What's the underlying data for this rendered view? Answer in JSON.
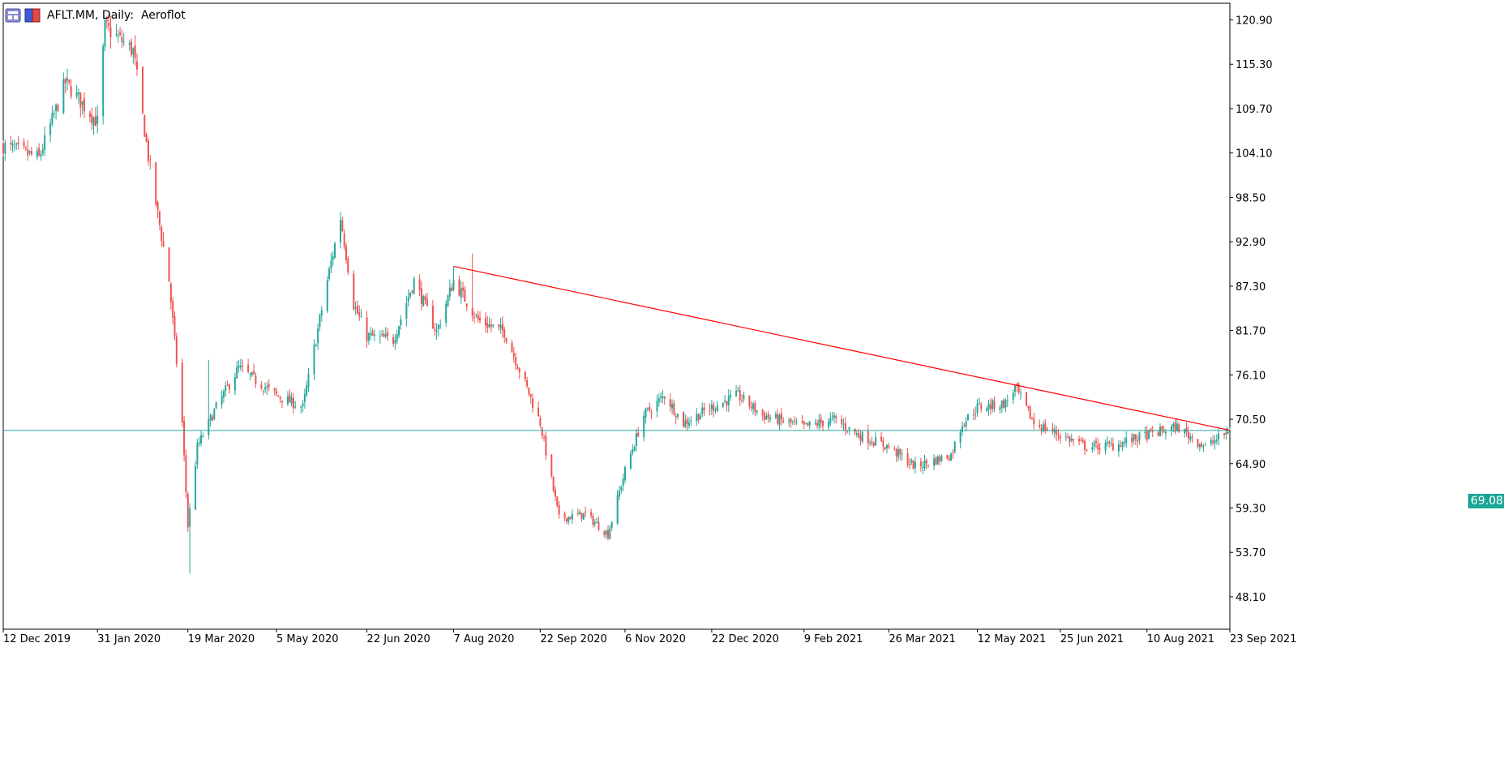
{
  "header": {
    "symbol": "AFLT.MM",
    "timeframe": "Daily",
    "description": "Aeroflot",
    "icons": [
      "chart-properties-icon",
      "trade-icon"
    ]
  },
  "current_price_label": "69.08",
  "colors": {
    "bull": "#26a69a",
    "bear": "#ef5350",
    "trendline": "#ff0000",
    "price_line": "#26a69a",
    "axis": "#000000",
    "background": "#ffffff"
  },
  "chart_data": {
    "type": "candlestick",
    "title": "AFLT.MM, Daily:  Aeroflot",
    "ylim": [
      44.0,
      123.0
    ],
    "y_ticks": [
      "120.90",
      "115.30",
      "109.70",
      "104.10",
      "98.50",
      "92.90",
      "87.30",
      "81.70",
      "76.10",
      "70.50",
      "64.90",
      "59.30",
      "53.70",
      "48.10"
    ],
    "x_ticks": [
      "12 Dec 2019",
      "31 Jan 2020",
      "19 Mar 2020",
      "5 May 2020",
      "22 Jun 2020",
      "7 Aug 2020",
      "22 Sep 2020",
      "6 Nov 2020",
      "22 Dec 2020",
      "9 Feb 2021",
      "26 Mar 2021",
      "12 May 2021",
      "25 Jun 2021",
      "10 Aug 2021",
      "23 Sep 2021"
    ],
    "trendline": {
      "from": {
        "date": "7 Aug 2020",
        "price": 89.8
      },
      "to": {
        "date": "23 Sep 2021",
        "price": 69.1
      }
    },
    "current_price_line": 69.08,
    "close_path": [
      {
        "date": "12 Dec 2019",
        "close": 105.0
      },
      {
        "date": "31 Dec 2019",
        "close": 103.5
      },
      {
        "date": "14 Jan 2020",
        "close": 113.0
      },
      {
        "date": "31 Jan 2020",
        "close": 108.0
      },
      {
        "date": "4 Feb 2020",
        "close": 120.0
      },
      {
        "date": "19 Feb 2020",
        "close": 117.0
      },
      {
        "date": "28 Feb 2020",
        "close": 102.0
      },
      {
        "date": "9 Mar 2020",
        "close": 88.0
      },
      {
        "date": "16 Mar 2020",
        "close": 70.0
      },
      {
        "date": "19 Mar 2020",
        "close": 57.0
      },
      {
        "date": "24 Mar 2020",
        "close": 67.0
      },
      {
        "date": "3 Apr 2020",
        "close": 72.0
      },
      {
        "date": "15 Apr 2020",
        "close": 77.0
      },
      {
        "date": "5 May 2020",
        "close": 73.5
      },
      {
        "date": "19 May 2020",
        "close": 72.0
      },
      {
        "date": "1 Jun 2020",
        "close": 88.0
      },
      {
        "date": "8 Jun 2020",
        "close": 96.0
      },
      {
        "date": "15 Jun 2020",
        "close": 85.0
      },
      {
        "date": "22 Jun 2020",
        "close": 81.0
      },
      {
        "date": "6 Jul 2020",
        "close": 80.5
      },
      {
        "date": "17 Jul 2020",
        "close": 88.0
      },
      {
        "date": "29 Jul 2020",
        "close": 81.5
      },
      {
        "date": "7 Aug 2020",
        "close": 88.0
      },
      {
        "date": "20 Aug 2020",
        "close": 83.0
      },
      {
        "date": "3 Sep 2020",
        "close": 81.5
      },
      {
        "date": "14 Sep 2020",
        "close": 75.0
      },
      {
        "date": "22 Sep 2020",
        "close": 70.0
      },
      {
        "date": "2 Oct 2020",
        "close": 58.0
      },
      {
        "date": "16 Oct 2020",
        "close": 58.5
      },
      {
        "date": "28 Oct 2020",
        "close": 56.0
      },
      {
        "date": "6 Nov 2020",
        "close": 64.0
      },
      {
        "date": "16 Nov 2020",
        "close": 71.0
      },
      {
        "date": "27 Nov 2020",
        "close": 73.5
      },
      {
        "date": "7 Dec 2020",
        "close": 70.0
      },
      {
        "date": "22 Dec 2020",
        "close": 72.0
      },
      {
        "date": "5 Jan 2021",
        "close": 73.5
      },
      {
        "date": "18 Jan 2021",
        "close": 71.0
      },
      {
        "date": "9 Feb 2021",
        "close": 69.5
      },
      {
        "date": "25 Feb 2021",
        "close": 70.5
      },
      {
        "date": "10 Mar 2021",
        "close": 68.5
      },
      {
        "date": "26 Mar 2021",
        "close": 67.0
      },
      {
        "date": "9 Apr 2021",
        "close": 64.5
      },
      {
        "date": "28 Apr 2021",
        "close": 66.0
      },
      {
        "date": "4 May 2021",
        "close": 70.0
      },
      {
        "date": "12 May 2021",
        "close": 72.0
      },
      {
        "date": "27 May 2021",
        "close": 72.5
      },
      {
        "date": "1 Jun 2021",
        "close": 74.5
      },
      {
        "date": "11 Jun 2021",
        "close": 70.0
      },
      {
        "date": "25 Jun 2021",
        "close": 68.5
      },
      {
        "date": "9 Jul 2021",
        "close": 67.0
      },
      {
        "date": "23 Jul 2021",
        "close": 67.2
      },
      {
        "date": "10 Aug 2021",
        "close": 68.5
      },
      {
        "date": "26 Aug 2021",
        "close": 69.5
      },
      {
        "date": "10 Sep 2021",
        "close": 67.0
      },
      {
        "date": "23 Sep 2021",
        "close": 69.08
      }
    ],
    "spikes": [
      {
        "date": "20 Mar 2020",
        "low": 51.0
      },
      {
        "date": "7 Aug 2020",
        "high": 89.8
      },
      {
        "date": "17 Aug 2020",
        "high": 91.4
      },
      {
        "date": "30 Mar 2020",
        "high": 78.0
      }
    ]
  }
}
